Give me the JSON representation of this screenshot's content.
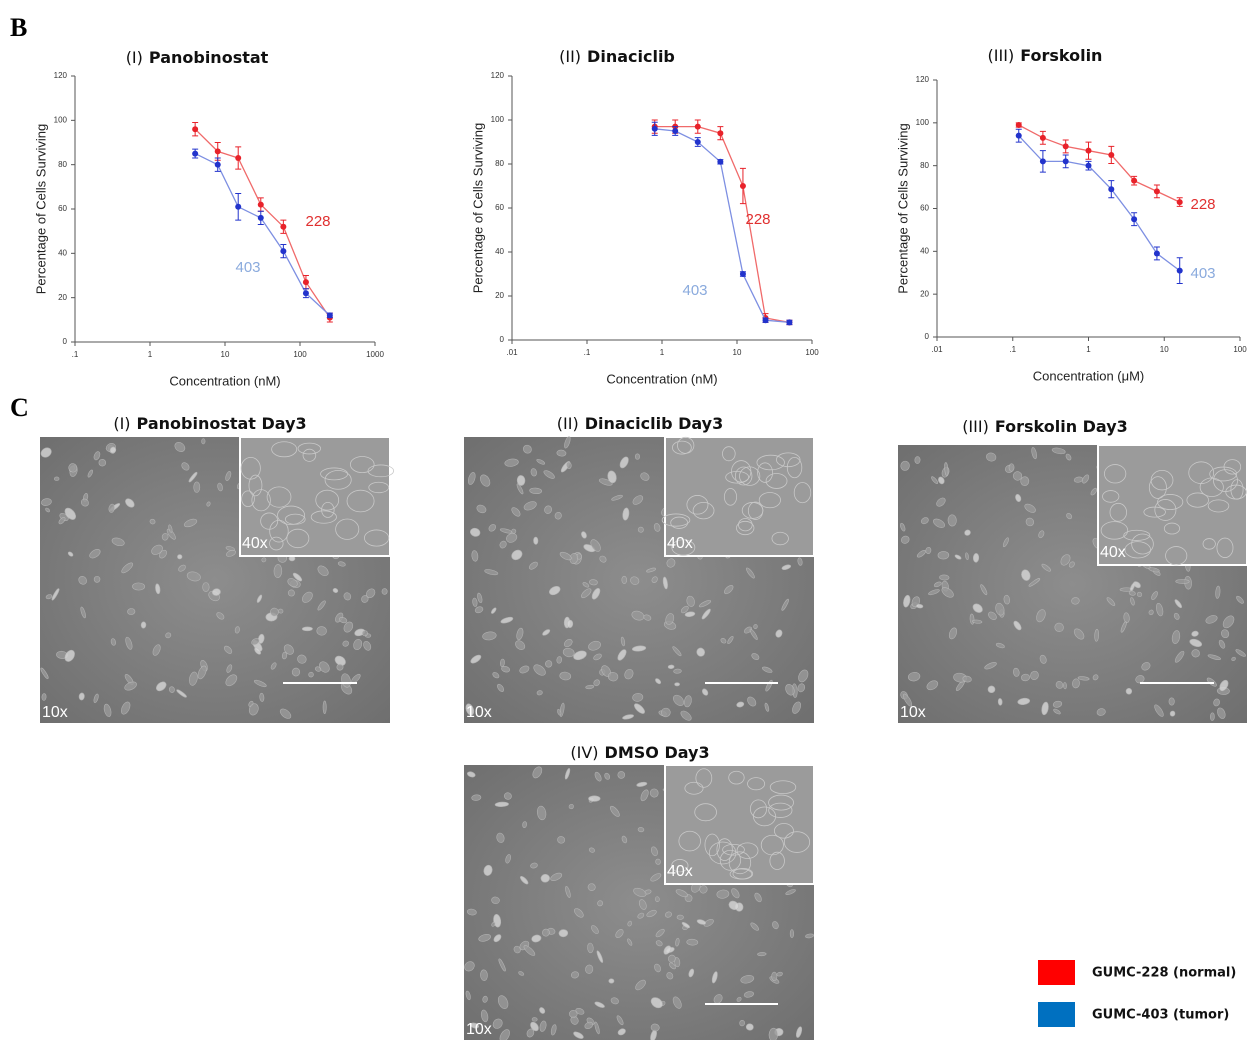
{
  "panel_labels": [
    "B",
    "C"
  ],
  "chart_data": [
    {
      "type": "line",
      "panel": "(I)",
      "title": "Panobinostat",
      "x_label": "Concentration (nM)",
      "y_label": "Percentage of Cells Surviving",
      "log_x": true,
      "x": [
        4,
        8,
        15,
        30,
        60,
        120,
        250
      ],
      "xlim": [
        0.1,
        1000
      ],
      "xticks": [
        {
          "value": 0.1,
          "label": ".1"
        },
        1,
        10,
        100,
        1000
      ],
      "ylim": [
        0,
        120
      ],
      "yticks": [
        0,
        20,
        40,
        60,
        80,
        100,
        120
      ],
      "series": [
        {
          "name": "228",
          "color": "#e8222a",
          "values": [
            96,
            86,
            83,
            62,
            52,
            27,
            11
          ],
          "errors": [
            3,
            4,
            5,
            3,
            3,
            3,
            2
          ]
        },
        {
          "name": "403",
          "color": "#2233cc",
          "values": [
            85,
            80,
            61,
            56,
            41,
            22,
            12
          ],
          "errors": [
            2,
            3,
            6,
            3,
            3,
            2,
            1
          ]
        }
      ]
    },
    {
      "type": "line",
      "panel": "(II)",
      "title": "Dinaciclib",
      "x_label": "Concentration (nM)",
      "y_label": "Percentage of Cells Surviving",
      "log_x": true,
      "x": [
        0.8,
        1.5,
        3,
        6,
        12,
        24,
        50
      ],
      "xlim": [
        0.01,
        100
      ],
      "xticks": [
        {
          "value": 0.01,
          "label": ".01"
        },
        {
          "value": 0.1,
          "label": ".1"
        },
        1,
        10,
        100
      ],
      "ylim": [
        0,
        120
      ],
      "yticks": [
        0,
        20,
        40,
        60,
        80,
        100,
        120
      ],
      "series": [
        {
          "name": "228",
          "color": "#e8222a",
          "values": [
            97,
            97,
            97,
            94,
            70,
            10,
            8
          ],
          "errors": [
            3,
            3,
            3,
            3,
            8,
            2,
            1
          ]
        },
        {
          "name": "403",
          "color": "#2233cc",
          "values": [
            96,
            95,
            90,
            81,
            30,
            9,
            8
          ],
          "errors": [
            3,
            2,
            2,
            1,
            1,
            1,
            1
          ]
        }
      ]
    },
    {
      "type": "line",
      "panel": "(III)",
      "title": "Forskolin",
      "x_label": "Concentration (μM)",
      "y_label": "Percentage of Cells Surviving",
      "log_x": true,
      "x": [
        0.12,
        0.25,
        0.5,
        1,
        2,
        4,
        8,
        16
      ],
      "xlim": [
        0.01,
        100
      ],
      "xticks": [
        {
          "value": 0.01,
          "label": ".01"
        },
        {
          "value": 0.1,
          "label": ".1"
        },
        1,
        10,
        100
      ],
      "ylim": [
        0,
        120
      ],
      "yticks": [
        0,
        20,
        40,
        60,
        80,
        100,
        120
      ],
      "series": [
        {
          "name": "228",
          "color": "#e8222a",
          "values": [
            99,
            93,
            89,
            87,
            85,
            73,
            68,
            63
          ],
          "errors": [
            1,
            3,
            3,
            4,
            4,
            2,
            3,
            2
          ]
        },
        {
          "name": "403",
          "color": "#2233cc",
          "values": [
            94,
            82,
            82,
            80,
            69,
            55,
            39,
            31
          ],
          "errors": [
            3,
            5,
            3,
            2,
            4,
            3,
            3,
            6
          ]
        }
      ]
    }
  ],
  "micrographs": [
    {
      "panel": "(I)",
      "title": "Panobinostat Day3",
      "low_mag": "10x",
      "high_mag": "40x"
    },
    {
      "panel": "(II)",
      "title": "Dinaciclib Day3",
      "low_mag": "10x",
      "high_mag": "40x"
    },
    {
      "panel": "(III)",
      "title": "Forskolin Day3",
      "low_mag": "10x",
      "high_mag": "40x"
    },
    {
      "panel": "(IV)",
      "title": "DMSO Day3",
      "low_mag": "10x",
      "high_mag": "40x"
    }
  ],
  "legend": [
    {
      "label": "GUMC-228 (normal)",
      "color": "#ff0000"
    },
    {
      "label": "GUMC-403 (tumor)",
      "color": "#0070c0"
    }
  ]
}
